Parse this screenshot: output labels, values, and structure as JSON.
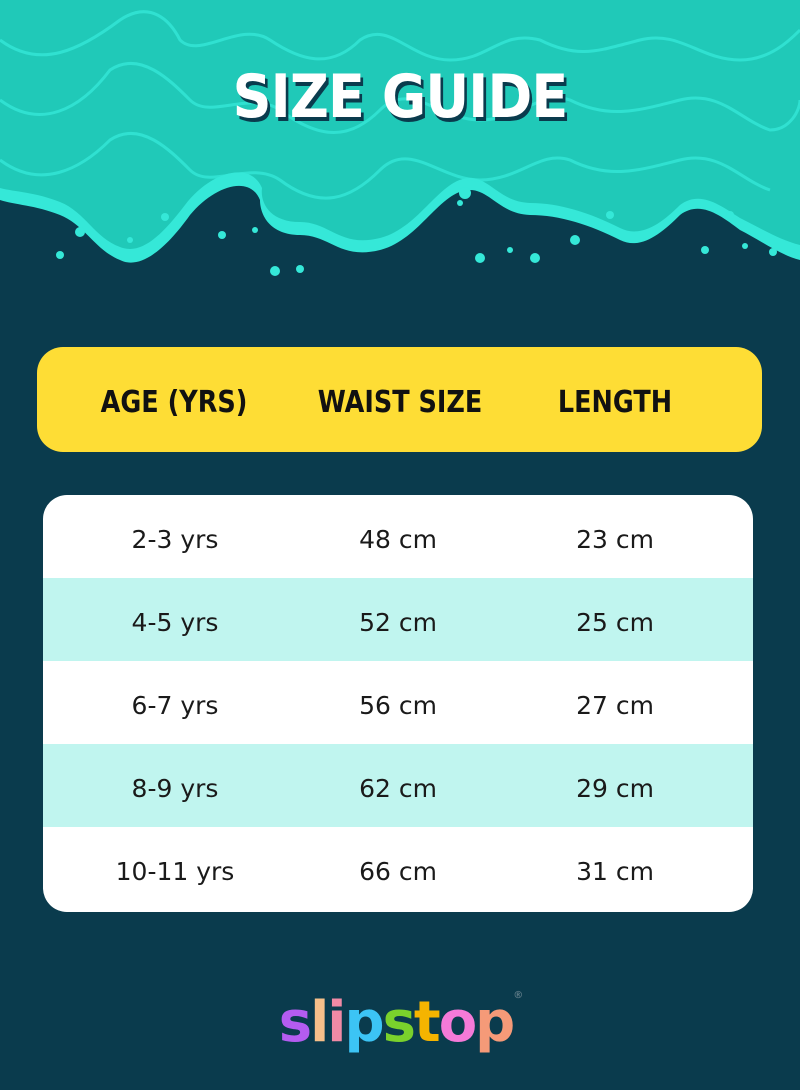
{
  "title": "SIZE GUIDE",
  "colors": {
    "background": "#0a3b4d",
    "wave": "#20c9b8",
    "wave_edge": "#35e8d8",
    "header": "#fedd35",
    "row_alt": "#c0f5ef"
  },
  "table": {
    "headers": [
      "AGE (YRS)",
      "WAIST SIZE",
      "LENGTH"
    ],
    "rows": [
      [
        "2-3 yrs",
        "48 cm",
        "23 cm"
      ],
      [
        "4-5 yrs",
        "52 cm",
        "25 cm"
      ],
      [
        "6-7 yrs",
        "56 cm",
        "27 cm"
      ],
      [
        "8-9 yrs",
        "62 cm",
        "29 cm"
      ],
      [
        "10-11 yrs",
        "66 cm",
        "31 cm"
      ]
    ]
  },
  "logo": {
    "letters": [
      "s",
      "l",
      "i",
      "p",
      "s",
      "t",
      "o",
      "p"
    ],
    "colors": [
      "#b45cf0",
      "#f7c08a",
      "#f08aa5",
      "#3cc4f5",
      "#7ad12c",
      "#f5b400",
      "#f57ad8",
      "#f59a78"
    ],
    "text": "slipstop"
  }
}
